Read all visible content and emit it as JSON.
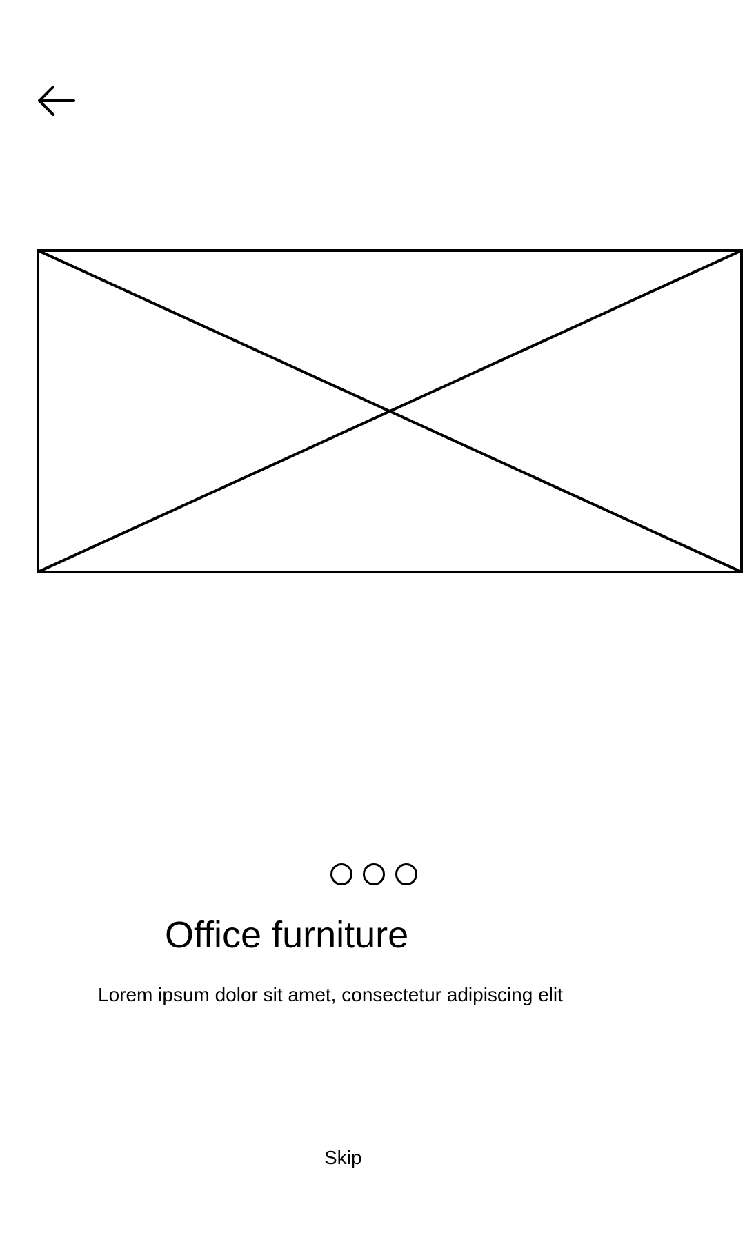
{
  "header": {
    "back_icon": "arrow-left-icon"
  },
  "hero": {
    "image_placeholder": "image-placeholder"
  },
  "pager": {
    "count": 3
  },
  "content": {
    "title": "Office furniture",
    "description": "Lorem ipsum dolor sit amet, consectetur adipiscing elit"
  },
  "footer": {
    "skip_label": "Skip"
  },
  "colors": {
    "background": "#ffffff",
    "foreground": "#000000"
  }
}
